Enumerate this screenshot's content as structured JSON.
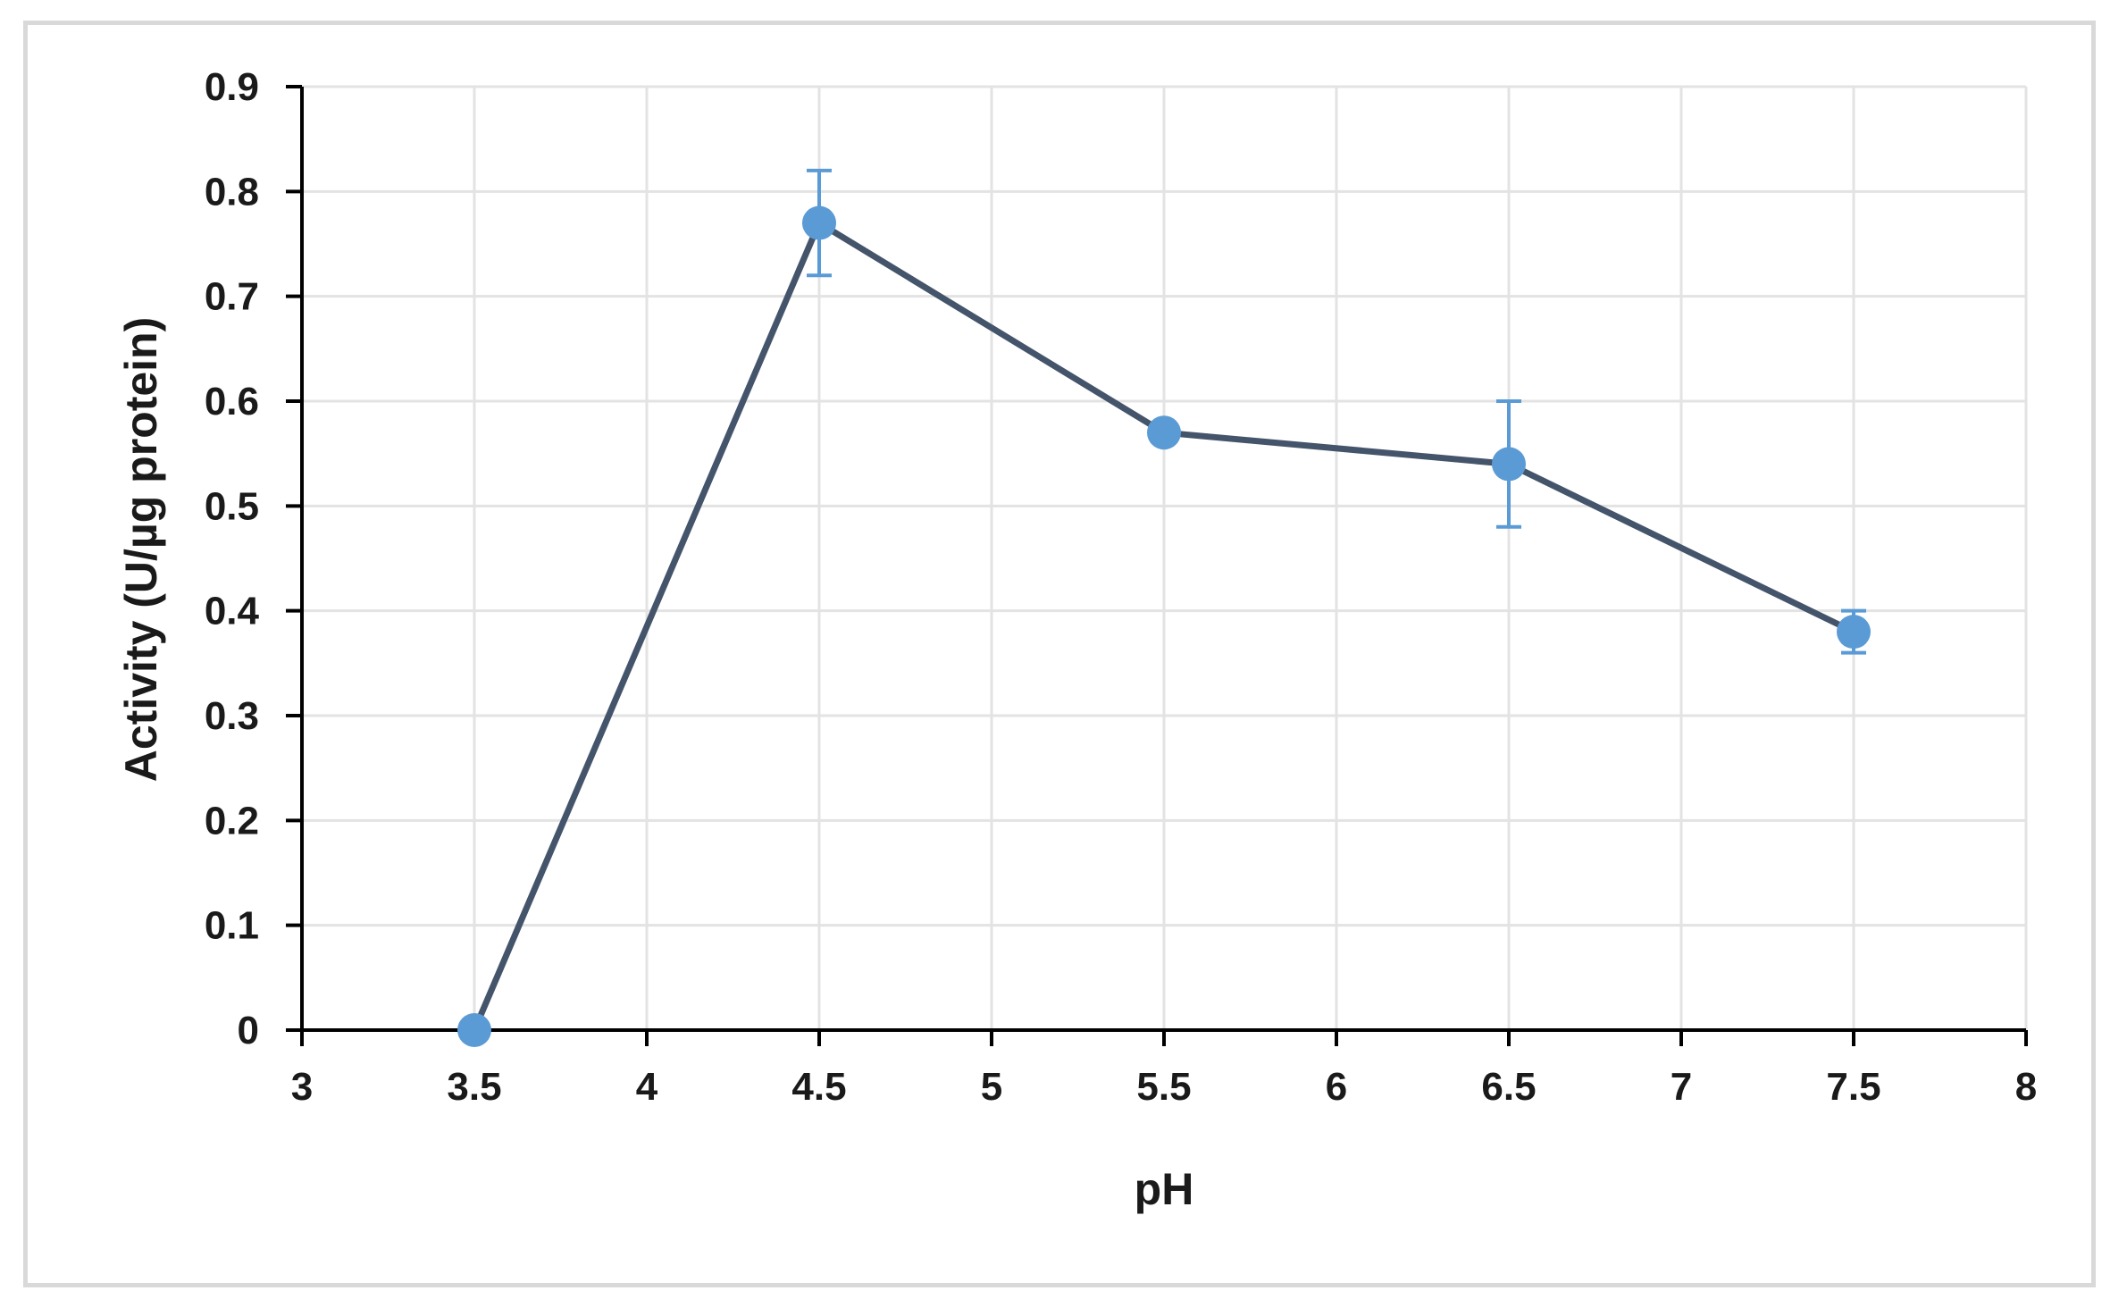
{
  "chart_data": {
    "type": "line",
    "title": "",
    "xlabel": "pH",
    "ylabel": "Activity (U/µg protein)",
    "xlim": [
      3,
      8
    ],
    "ylim": [
      0,
      0.9
    ],
    "x_ticks": [
      "3",
      "3.5",
      "4",
      "4.5",
      "5",
      "5.5",
      "6",
      "6.5",
      "7",
      "7.5",
      "8"
    ],
    "y_ticks": [
      "0",
      "0.1",
      "0.2",
      "0.3",
      "0.4",
      "0.5",
      "0.6",
      "0.7",
      "0.8",
      "0.9"
    ],
    "grid": true,
    "series": [
      {
        "x": [
          3.5,
          4.5,
          5.5,
          6.5,
          7.5
        ],
        "y": [
          0.0,
          0.77,
          0.57,
          0.54,
          0.38
        ],
        "error": [
          0.0,
          0.05,
          0.0,
          0.06,
          0.02
        ],
        "line_color": "#44546a",
        "marker_color": "#5b9bd5",
        "errorbar_color": "#5b9bd5"
      }
    ]
  }
}
